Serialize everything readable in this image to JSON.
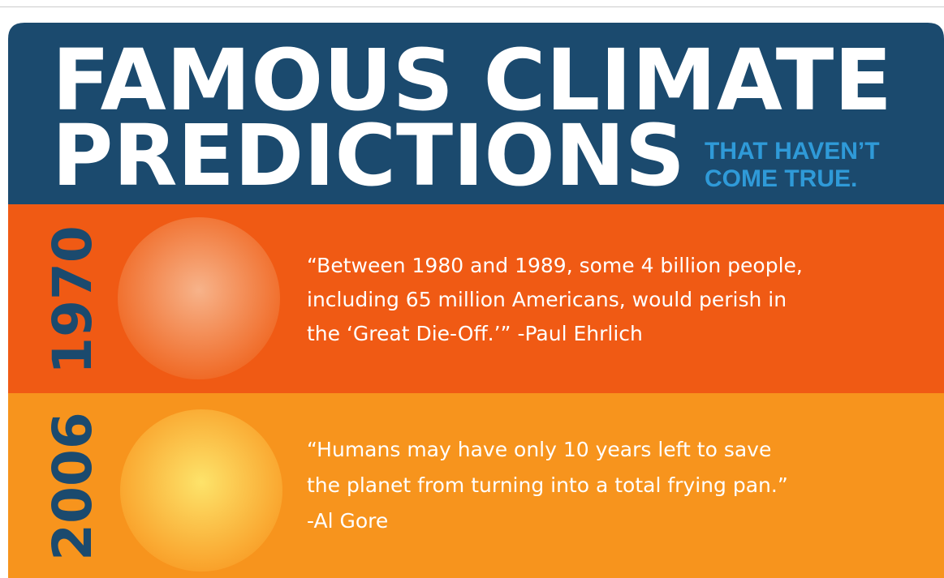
{
  "header": {
    "title_lines": [
      "FAMOUS CLIMATE",
      "PREDICTIONS"
    ],
    "subtitle_lines": [
      "THAT HAVEN’T",
      "COME TRUE."
    ]
  },
  "predictions": [
    {
      "year": "1970",
      "quote_lines": [
        "“Between 1980 and 1989, some 4 billion people,",
        "including 65 million Americans, would perish in",
        "the ‘Great Die-Off.’” -Paul Ehrlich"
      ]
    },
    {
      "year": "2006",
      "quote_lines": [
        "“Humans may have only 10 years left to save",
        "the planet from turning into a total frying pan.”",
        "-Al Gore"
      ]
    }
  ]
}
